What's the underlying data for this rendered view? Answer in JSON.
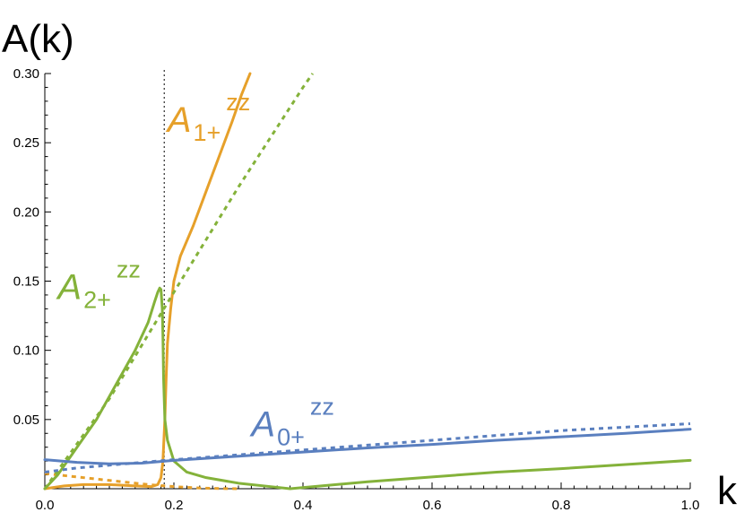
{
  "chart_data": {
    "type": "line",
    "title": "",
    "xlabel": "k",
    "ylabel": "A(k)",
    "xlim": [
      0,
      1.0
    ],
    "ylim": [
      0,
      0.3
    ],
    "x_ticks": [
      "0.0",
      "0.2",
      "0.4",
      "0.6",
      "0.8",
      "1.0"
    ],
    "y_ticks": [
      "0.05",
      "0.10",
      "0.15",
      "0.20",
      "0.25",
      "0.30"
    ],
    "grid": false,
    "legend": "none",
    "vline": {
      "x": 0.185,
      "style": "dotted",
      "color": "#000000"
    },
    "annotations": [
      {
        "main": "A",
        "sub": "1+",
        "sup": "zz",
        "color": "#E6A02A",
        "x": 0.19,
        "y": 0.258
      },
      {
        "main": "A",
        "sub": "2+",
        "sup": "zz",
        "color": "#84B23A",
        "x": 0.02,
        "y": 0.137
      },
      {
        "main": "A",
        "sub": "0+",
        "sup": "zz",
        "color": "#5A7FBF",
        "x": 0.32,
        "y": 0.038
      }
    ],
    "series": [
      {
        "color": "#E6A02A",
        "style": "solid",
        "points": [
          [
            0,
            0.0
          ],
          [
            0.03,
            0.002
          ],
          [
            0.06,
            0.003
          ],
          [
            0.1,
            0.003
          ],
          [
            0.14,
            0.002
          ],
          [
            0.165,
            0.0015
          ],
          [
            0.175,
            0.003
          ],
          [
            0.18,
            0.008
          ],
          [
            0.183,
            0.02
          ],
          [
            0.186,
            0.05
          ],
          [
            0.188,
            0.08
          ],
          [
            0.19,
            0.105
          ],
          [
            0.195,
            0.13
          ],
          [
            0.2,
            0.15
          ],
          [
            0.21,
            0.168
          ],
          [
            0.23,
            0.19
          ],
          [
            0.25,
            0.215
          ],
          [
            0.27,
            0.24
          ],
          [
            0.29,
            0.265
          ],
          [
            0.305,
            0.285
          ],
          [
            0.318,
            0.3
          ]
        ]
      },
      {
        "color": "#E6A02A",
        "style": "dashed",
        "points": [
          [
            0,
            0.011
          ],
          [
            0.04,
            0.009
          ],
          [
            0.08,
            0.007
          ],
          [
            0.12,
            0.005
          ],
          [
            0.16,
            0.003
          ],
          [
            0.2,
            0.0015
          ],
          [
            0.24,
            0.0005
          ],
          [
            0.28,
            0.0001
          ],
          [
            0.3,
            0.0
          ]
        ]
      },
      {
        "color": "#84B23A",
        "style": "solid",
        "points": [
          [
            0,
            0.0
          ],
          [
            0.02,
            0.01
          ],
          [
            0.05,
            0.03
          ],
          [
            0.08,
            0.05
          ],
          [
            0.11,
            0.075
          ],
          [
            0.14,
            0.1
          ],
          [
            0.16,
            0.12
          ],
          [
            0.17,
            0.135
          ],
          [
            0.175,
            0.142
          ],
          [
            0.178,
            0.145
          ],
          [
            0.18,
            0.144
          ],
          [
            0.182,
            0.13
          ],
          [
            0.183,
            0.11
          ],
          [
            0.184,
            0.08
          ],
          [
            0.186,
            0.05
          ],
          [
            0.19,
            0.035
          ],
          [
            0.2,
            0.02
          ],
          [
            0.22,
            0.012
          ],
          [
            0.25,
            0.008
          ],
          [
            0.3,
            0.004
          ],
          [
            0.35,
            0.0015
          ],
          [
            0.38,
            0.0
          ],
          [
            0.5,
            0.005
          ],
          [
            0.6,
            0.0085
          ],
          [
            0.7,
            0.012
          ],
          [
            0.8,
            0.0145
          ],
          [
            0.9,
            0.0175
          ],
          [
            1.0,
            0.0205
          ]
        ]
      },
      {
        "color": "#84B23A",
        "style": "dashed",
        "points": [
          [
            0,
            0.0
          ],
          [
            0.1,
            0.065
          ],
          [
            0.2,
            0.142
          ],
          [
            0.3,
            0.218
          ],
          [
            0.4,
            0.29
          ],
          [
            0.415,
            0.3
          ]
        ]
      },
      {
        "color": "#5A7FBF",
        "style": "solid",
        "points": [
          [
            0,
            0.021
          ],
          [
            0.05,
            0.019
          ],
          [
            0.1,
            0.018
          ],
          [
            0.15,
            0.0185
          ],
          [
            0.2,
            0.0205
          ],
          [
            0.3,
            0.0235
          ],
          [
            0.4,
            0.0265
          ],
          [
            0.5,
            0.0295
          ],
          [
            0.6,
            0.032
          ],
          [
            0.7,
            0.035
          ],
          [
            0.8,
            0.0375
          ],
          [
            0.9,
            0.04
          ],
          [
            1.0,
            0.043
          ]
        ]
      },
      {
        "color": "#5A7FBF",
        "style": "dashed",
        "points": [
          [
            0,
            0.012
          ],
          [
            0.05,
            0.015
          ],
          [
            0.1,
            0.017
          ],
          [
            0.2,
            0.021
          ],
          [
            0.3,
            0.0245
          ],
          [
            0.4,
            0.028
          ],
          [
            0.5,
            0.0315
          ],
          [
            0.6,
            0.035
          ],
          [
            0.7,
            0.0385
          ],
          [
            0.8,
            0.042
          ],
          [
            0.9,
            0.0445
          ],
          [
            1.0,
            0.047
          ]
        ]
      }
    ]
  }
}
